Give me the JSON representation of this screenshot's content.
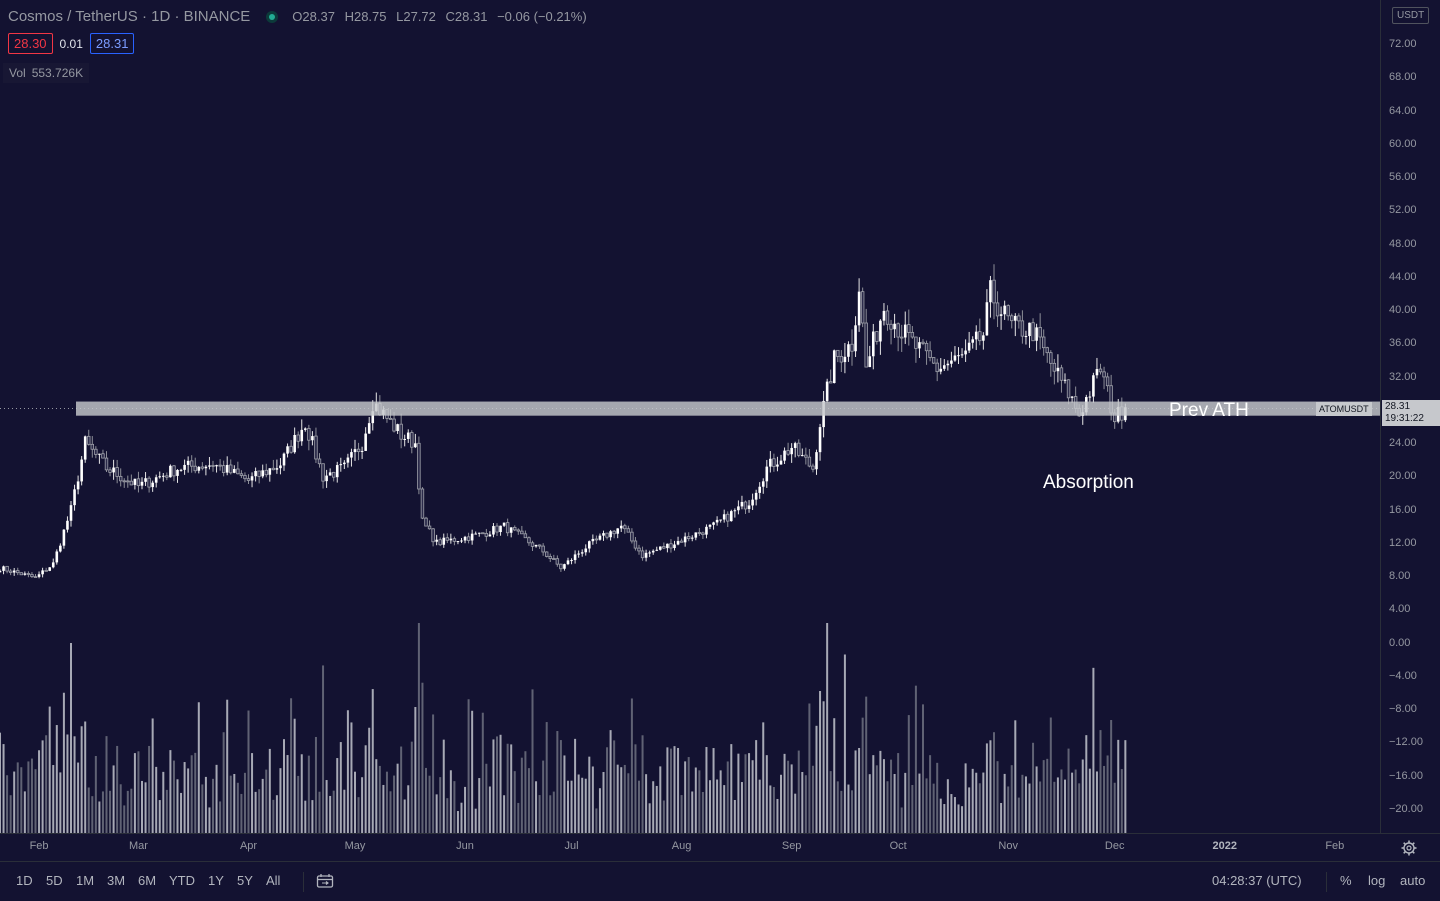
{
  "header": {
    "title": "Cosmos / TetherUS · 1D · BINANCE",
    "open": "O28.37",
    "high": "H28.75",
    "low": "L27.72",
    "close": "C28.31",
    "change": "−0.06 (−0.21%)"
  },
  "quote": {
    "sell": "28.30",
    "spread": "0.01",
    "buy": "28.31"
  },
  "volume_legend": {
    "label": "Vol",
    "value": "553.726K"
  },
  "price_axis": {
    "currency": "USDT",
    "ticks": [
      "72.00",
      "68.00",
      "64.00",
      "60.00",
      "56.00",
      "52.00",
      "48.00",
      "44.00",
      "40.00",
      "36.00",
      "32.00",
      "28.00",
      "24.00",
      "20.00",
      "16.00",
      "12.00",
      "8.00",
      "4.00",
      "0.00",
      "−4.00",
      "−8.00",
      "−12.00",
      "−16.00",
      "−20.00"
    ],
    "last_price": "28.31",
    "countdown": "19:31:22",
    "symbol_tag": "ATOMUSDT"
  },
  "annotations": {
    "zone_label": "Prev ATH",
    "note": "Absorption"
  },
  "time_axis": {
    "labels": [
      "Feb",
      "Mar",
      "Apr",
      "May",
      "Jun",
      "Jul",
      "Aug",
      "Sep",
      "Oct",
      "Nov",
      "Dec",
      "2022",
      "Feb"
    ],
    "bold_labels": [
      "2022"
    ]
  },
  "bottom_bar": {
    "ranges": [
      "1D",
      "5D",
      "1M",
      "3M",
      "6M",
      "YTD",
      "1Y",
      "5Y",
      "All"
    ],
    "clock": "04:28:37 (UTC)",
    "options": [
      "%",
      "log",
      "auto"
    ]
  },
  "icons": {
    "settings": "gear-icon",
    "goto_date": "calendar-icon",
    "live": "live-dot-icon"
  },
  "colors": {
    "background": "#131231",
    "candle": "#ffffff",
    "volume": "#9598a1",
    "zone": "#c6c8cc"
  },
  "chart_data": {
    "type": "candlestick",
    "symbol": "ATOMUSDT",
    "interval": "1D",
    "y_range": [
      -20,
      72
    ],
    "x_range": [
      "2021-01-21",
      "2022-02-28"
    ],
    "resistance_zone": [
      27.3,
      29.0
    ],
    "anchors": [
      {
        "date": "2021-01-21",
        "close": 9.0
      },
      {
        "date": "2021-01-31",
        "close": 7.8
      },
      {
        "date": "2021-02-05",
        "close": 9.5
      },
      {
        "date": "2021-02-10",
        "close": 16.0
      },
      {
        "date": "2021-02-14",
        "close": 24.0
      },
      {
        "date": "2021-02-20",
        "close": 21.0
      },
      {
        "date": "2021-03-01",
        "close": 18.8
      },
      {
        "date": "2021-03-12",
        "close": 21.0
      },
      {
        "date": "2021-03-22",
        "close": 21.5
      },
      {
        "date": "2021-04-01",
        "close": 19.5
      },
      {
        "date": "2021-04-10",
        "close": 21.5
      },
      {
        "date": "2021-04-17",
        "close": 26.5
      },
      {
        "date": "2021-04-22",
        "close": 20.0
      },
      {
        "date": "2021-04-28",
        "close": 21.0
      },
      {
        "date": "2021-05-03",
        "close": 24.0
      },
      {
        "date": "2021-05-06",
        "close": 29.0
      },
      {
        "date": "2021-05-14",
        "close": 25.0
      },
      {
        "date": "2021-05-18",
        "close": 24.0
      },
      {
        "date": "2021-05-20",
        "close": 14.5
      },
      {
        "date": "2021-05-24",
        "close": 12.0
      },
      {
        "date": "2021-06-05",
        "close": 13.0
      },
      {
        "date": "2021-06-12",
        "close": 14.0
      },
      {
        "date": "2021-06-23",
        "close": 11.0
      },
      {
        "date": "2021-06-28",
        "close": 9.0
      },
      {
        "date": "2021-07-05",
        "close": 11.5
      },
      {
        "date": "2021-07-15",
        "close": 14.0
      },
      {
        "date": "2021-07-21",
        "close": 10.5
      },
      {
        "date": "2021-07-30",
        "close": 12.0
      },
      {
        "date": "2021-08-10",
        "close": 14.0
      },
      {
        "date": "2021-08-20",
        "close": 17.0
      },
      {
        "date": "2021-08-25",
        "close": 21.0
      },
      {
        "date": "2021-09-01",
        "close": 23.5
      },
      {
        "date": "2021-09-07",
        "close": 21.0
      },
      {
        "date": "2021-09-09",
        "close": 26.5
      },
      {
        "date": "2021-09-13",
        "close": 34.0
      },
      {
        "date": "2021-09-18",
        "close": 36.0
      },
      {
        "date": "2021-09-20",
        "close": 43.0
      },
      {
        "date": "2021-09-22",
        "close": 33.0
      },
      {
        "date": "2021-09-27",
        "close": 40.5
      },
      {
        "date": "2021-10-01",
        "close": 38.0
      },
      {
        "date": "2021-10-05",
        "close": 36.0
      },
      {
        "date": "2021-10-12",
        "close": 33.0
      },
      {
        "date": "2021-10-20",
        "close": 34.5
      },
      {
        "date": "2021-10-25",
        "close": 37.0
      },
      {
        "date": "2021-10-27",
        "close": 42.0
      },
      {
        "date": "2021-11-02",
        "close": 38.0
      },
      {
        "date": "2021-11-08",
        "close": 37.5
      },
      {
        "date": "2021-11-13",
        "close": 33.5
      },
      {
        "date": "2021-11-18",
        "close": 30.0
      },
      {
        "date": "2021-11-21",
        "close": 27.5
      },
      {
        "date": "2021-11-27",
        "close": 33.0
      },
      {
        "date": "2021-12-01",
        "close": 27.0
      },
      {
        "date": "2021-12-04",
        "close": 28.31
      }
    ],
    "volume_spikes": [
      {
        "date": "2021-09-11",
        "volume_level": 1.0
      },
      {
        "date": "2021-09-16",
        "volume_level": 0.85
      },
      {
        "date": "2021-05-18",
        "volume_level": 0.6
      },
      {
        "date": "2021-11-22",
        "volume_level": 0.35
      }
    ]
  }
}
